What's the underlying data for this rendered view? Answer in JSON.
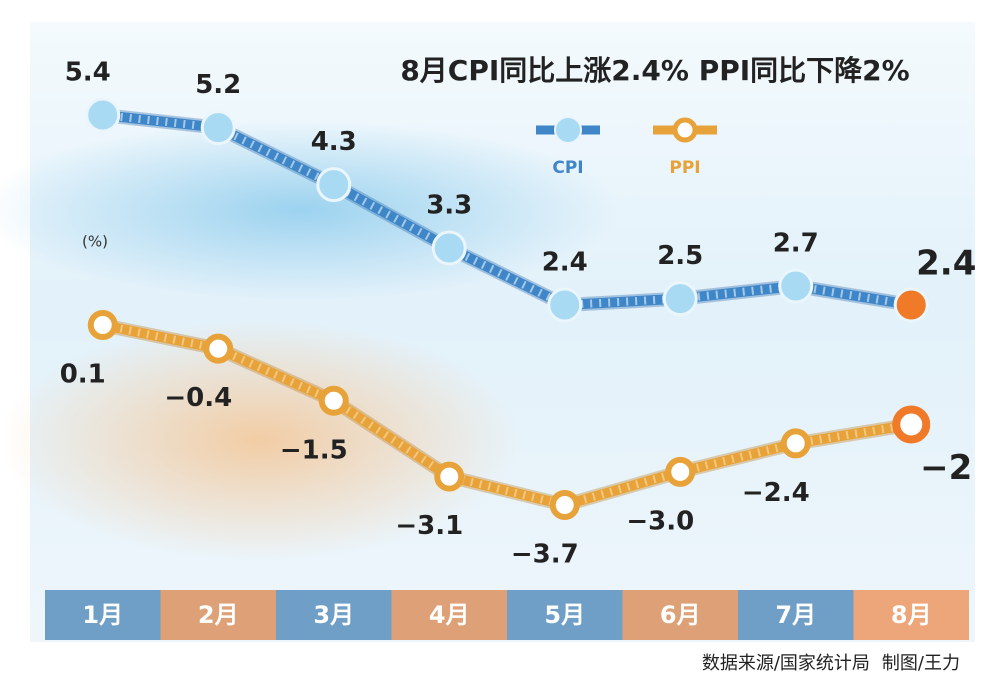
{
  "chart_data": {
    "type": "line",
    "title": "8月CPI同比上涨2.4%  PPI同比下降2%",
    "unit_label": "(%)",
    "categories": [
      "1月",
      "2月",
      "3月",
      "4月",
      "5月",
      "6月",
      "7月",
      "8月"
    ],
    "series": [
      {
        "name": "CPI",
        "color": "#3f86c8",
        "values": [
          5.4,
          5.2,
          4.3,
          3.3,
          2.4,
          2.5,
          2.7,
          2.4
        ]
      },
      {
        "name": "PPI",
        "color": "#e8a23a",
        "values": [
          0.1,
          -0.4,
          -1.5,
          -3.1,
          -3.7,
          -3.0,
          -2.4,
          -2
        ],
        "value_labels": [
          "0.1",
          "−0.4",
          "−1.5",
          "−3.1",
          "−3.7",
          "−3.0",
          "−2.4",
          "−2"
        ]
      }
    ],
    "highlight_color": "#f07a28",
    "source": "数据来源/国家统计局",
    "credit": "制图/王力"
  }
}
